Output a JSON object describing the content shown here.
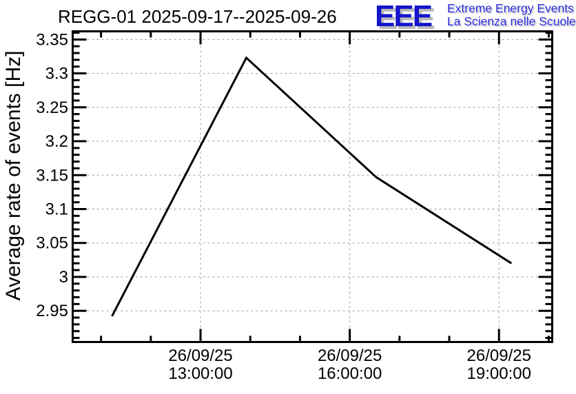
{
  "header": {
    "logo": {
      "acronym": "EEE",
      "line1": "Extreme Energy Events",
      "line2": "La Scienza nelle Scuole",
      "blue": "#1414cc",
      "text_blue": "#2828dd",
      "shadow_gray": "#b9b9b9",
      "text_shadow_gray": "#d2d2d2"
    }
  },
  "chart_data": {
    "type": "line",
    "title": "REGG-01 2025-09-17--2025-09-26",
    "xlabel": "",
    "ylabel": "Average rate of events [Hz]",
    "legend": "none",
    "grid": "dashed gray at major ticks, both axes",
    "line_color": "#000000",
    "background": "#ffffff",
    "x_axis": {
      "kind": "time",
      "range_hours": [
        10.43,
        20.07
      ],
      "minor_step_hours": 1,
      "major_ticks": [
        {
          "hour": 13,
          "date": "26/09/25",
          "time": "13:00:00"
        },
        {
          "hour": 16,
          "date": "26/09/25",
          "time": "16:00:00"
        },
        {
          "hour": 19,
          "date": "26/09/25",
          "time": "19:00:00"
        }
      ]
    },
    "y_axis": {
      "range": [
        2.904,
        3.362
      ],
      "minor_step": 0.01,
      "major_ticks": [
        "2.95",
        "3",
        "3.05",
        "3.1",
        "3.15",
        "3.2",
        "3.25",
        "3.3",
        "3.35"
      ]
    },
    "series": [
      {
        "name": "average-event-rate",
        "points": [
          {
            "time": "26/09/25 11:13",
            "hours": 11.22,
            "rate_hz": 2.942
          },
          {
            "time": "26/09/25 13:55",
            "hours": 13.92,
            "rate_hz": 3.323
          },
          {
            "time": "26/09/25 16:32",
            "hours": 16.53,
            "rate_hz": 3.147
          },
          {
            "time": "26/09/25 19:15",
            "hours": 19.25,
            "rate_hz": 3.02
          }
        ]
      }
    ]
  }
}
